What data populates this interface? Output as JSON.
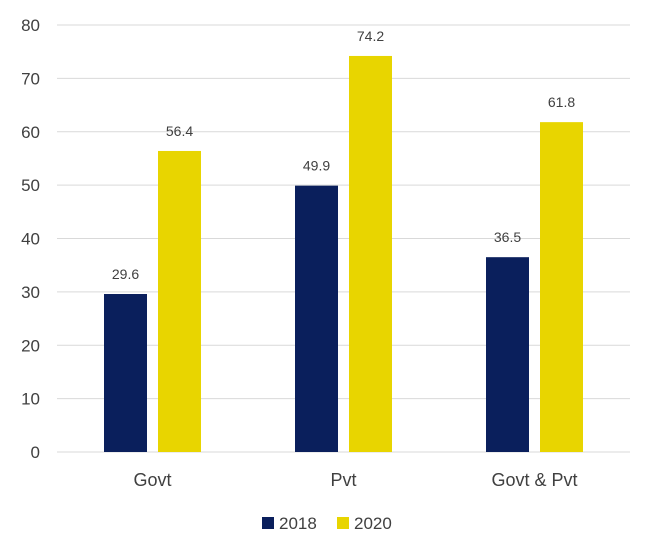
{
  "chart_data": {
    "type": "bar",
    "categories": [
      "Govt",
      "Pvt",
      "Govt & Pvt"
    ],
    "series": [
      {
        "name": "2018",
        "values": [
          29.6,
          49.9,
          36.5
        ],
        "color": "#0a1f5c"
      },
      {
        "name": "2020",
        "values": [
          56.4,
          74.2,
          61.8
        ],
        "color": "#e8d500"
      }
    ],
    "data_labels": [
      [
        "29.6",
        "49.9",
        "36.5"
      ],
      [
        "56.4",
        "74.2",
        "61.8"
      ]
    ],
    "ylim": [
      0,
      80
    ],
    "yticks": [
      0,
      10,
      20,
      30,
      40,
      50,
      60,
      70,
      80
    ],
    "ytick_labels": [
      "0",
      "10",
      "20",
      "30",
      "40",
      "50",
      "60",
      "70",
      "80"
    ],
    "grid": true,
    "gridline_color": "#d9d9d9",
    "legend": {
      "position": "bottom",
      "entries": [
        "2018",
        "2020"
      ]
    },
    "title": "",
    "xlabel": "",
    "ylabel": ""
  }
}
